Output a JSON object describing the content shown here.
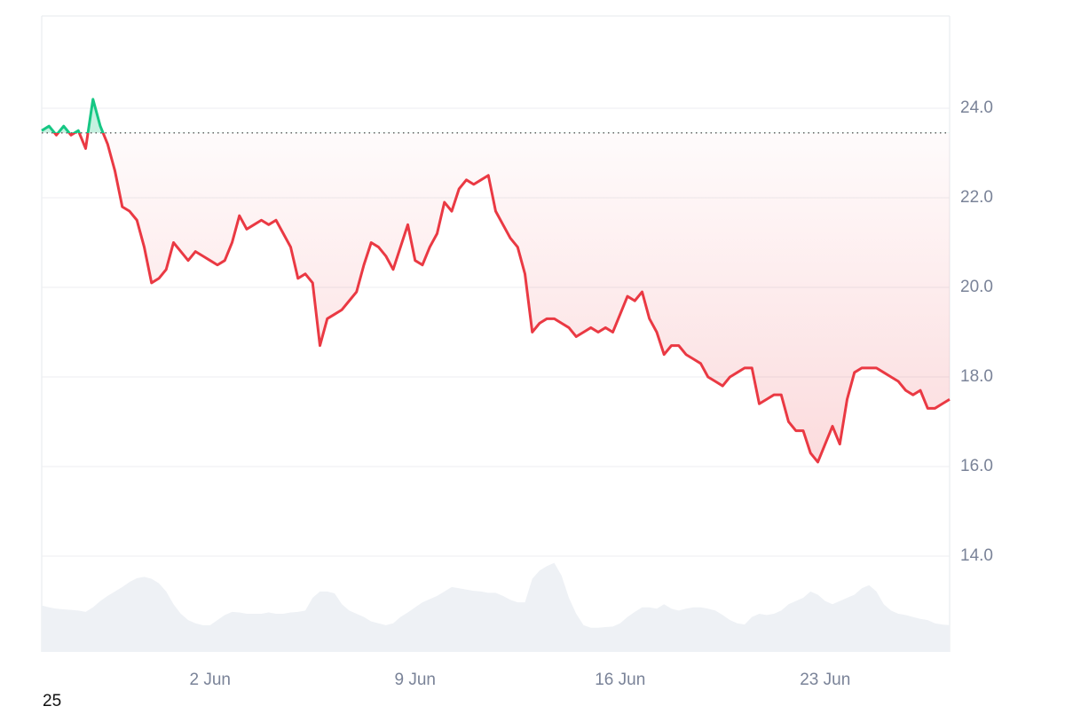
{
  "chart_data": {
    "type": "line",
    "baseline": 23.45,
    "up_color": "#16c784",
    "down_color": "#ea3943",
    "volume_color": "#eef1f5",
    "grid": true,
    "ylim": [
      11.86,
      26.06
    ],
    "yticks": [
      {
        "value": 14,
        "label": "14.0"
      },
      {
        "value": 16,
        "label": "16.0"
      },
      {
        "value": 18,
        "label": "18.0"
      },
      {
        "value": 20,
        "label": "20.0"
      },
      {
        "value": 22,
        "label": "22.0"
      },
      {
        "value": 24,
        "label": "24.0"
      }
    ],
    "y2lim": [
      0,
      100
    ],
    "categories": [
      null,
      null,
      null,
      null,
      null,
      null,
      null,
      null,
      null,
      null,
      null,
      null,
      null,
      null,
      null,
      null,
      null,
      null,
      null,
      null,
      null,
      null,
      null,
      "2 Jun",
      null,
      null,
      null,
      null,
      null,
      null,
      null,
      null,
      null,
      null,
      null,
      null,
      null,
      null,
      null,
      null,
      null,
      null,
      null,
      null,
      null,
      null,
      null,
      null,
      null,
      null,
      null,
      "9 Jun",
      null,
      null,
      null,
      null,
      null,
      null,
      null,
      null,
      null,
      null,
      null,
      null,
      null,
      null,
      null,
      null,
      null,
      null,
      null,
      null,
      null,
      null,
      null,
      null,
      null,
      null,
      null,
      "16 Jun",
      null,
      null,
      null,
      null,
      null,
      null,
      null,
      null,
      null,
      null,
      null,
      null,
      null,
      null,
      null,
      null,
      null,
      null,
      null,
      null,
      null,
      null,
      null,
      null,
      null,
      null,
      null,
      "23 Jun",
      null,
      null,
      null,
      null,
      null,
      null,
      null,
      null,
      null,
      null,
      null,
      null,
      null,
      null,
      null,
      null,
      null
    ],
    "series": [
      {
        "name": "Price",
        "values": [
          23.5,
          23.6,
          23.4,
          23.6,
          23.4,
          23.5,
          23.1,
          24.2,
          23.6,
          23.2,
          22.6,
          21.8,
          21.7,
          21.5,
          20.9,
          20.1,
          20.2,
          20.4,
          21.0,
          20.8,
          20.6,
          20.8,
          20.7,
          20.6,
          20.5,
          20.6,
          21.0,
          21.6,
          21.3,
          21.4,
          21.5,
          21.4,
          21.5,
          21.2,
          20.9,
          20.2,
          20.3,
          20.1,
          18.7,
          19.3,
          19.4,
          19.5,
          19.7,
          19.9,
          20.5,
          21.0,
          20.9,
          20.7,
          20.4,
          20.9,
          21.4,
          20.6,
          20.5,
          20.9,
          21.2,
          21.9,
          21.7,
          22.2,
          22.4,
          22.3,
          22.4,
          22.5,
          21.7,
          21.4,
          21.1,
          20.9,
          20.3,
          19.0,
          19.2,
          19.3,
          19.3,
          19.2,
          19.1,
          18.9,
          19.0,
          19.1,
          19.0,
          19.1,
          19.0,
          19.4,
          19.8,
          19.7,
          19.9,
          19.3,
          19.0,
          18.5,
          18.7,
          18.7,
          18.5,
          18.4,
          18.3,
          18.0,
          17.9,
          17.8,
          18.0,
          18.1,
          18.2,
          18.2,
          17.4,
          17.5,
          17.6,
          17.6,
          17.0,
          16.8,
          16.8,
          16.3,
          16.1,
          16.5,
          16.9,
          16.5,
          17.5,
          18.1,
          18.2,
          18.2,
          18.2,
          18.1,
          18.0,
          17.9,
          17.7,
          17.6,
          17.7,
          17.3,
          17.3,
          17.4,
          17.5
        ]
      },
      {
        "name": "Volume",
        "axis": "y2",
        "values": [
          7.3,
          7.0,
          6.8,
          6.7,
          6.6,
          6.5,
          6.3,
          7.0,
          8.0,
          8.8,
          9.5,
          10.2,
          11.0,
          11.6,
          11.8,
          11.5,
          10.8,
          9.5,
          7.5,
          6.0,
          5.0,
          4.5,
          4.2,
          4.2,
          5.0,
          5.8,
          6.3,
          6.2,
          6.0,
          6.0,
          6.0,
          6.2,
          6.0,
          6.0,
          6.2,
          6.3,
          6.5,
          8.5,
          9.5,
          9.5,
          9.2,
          7.5,
          6.5,
          6.0,
          5.5,
          4.8,
          4.5,
          4.2,
          4.5,
          5.5,
          6.2,
          7.0,
          7.8,
          8.3,
          8.8,
          9.5,
          10.2,
          10.0,
          9.8,
          9.6,
          9.5,
          9.3,
          9.3,
          8.8,
          8.2,
          7.8,
          7.8,
          11.5,
          12.8,
          13.5,
          14.0,
          12.0,
          8.5,
          6.0,
          4.2,
          3.8,
          3.8,
          3.9,
          4.0,
          4.5,
          5.5,
          6.3,
          7.0,
          7.0,
          6.8,
          7.5,
          6.8,
          6.5,
          6.8,
          7.0,
          7.0,
          6.8,
          6.5,
          5.8,
          5.0,
          4.5,
          4.3,
          5.5,
          6.0,
          5.8,
          6.0,
          6.5,
          7.5,
          8.0,
          8.5,
          9.5,
          9.0,
          8.0,
          7.5,
          8.0,
          8.5,
          9.0,
          10.0,
          10.5,
          9.5,
          7.5,
          6.5,
          6.0,
          5.8,
          5.5,
          5.2,
          5.0,
          4.5,
          4.3,
          4.2
        ]
      }
    ],
    "footer_label": "25"
  }
}
